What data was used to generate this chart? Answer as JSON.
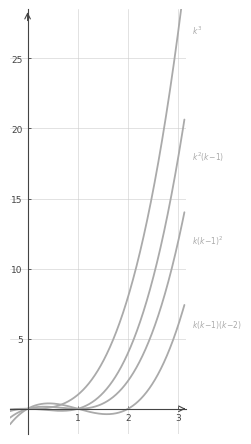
{
  "curves": [
    {
      "label": "k³",
      "color": "#aaaaaa",
      "linewidth": 1.3
    },
    {
      "label": "k²(k-1)",
      "color": "#aaaaaa",
      "linewidth": 1.3
    },
    {
      "label": "k(k-1)²",
      "color": "#aaaaaa",
      "linewidth": 1.3
    },
    {
      "label": "k(k-1)(k-2)",
      "color": "#aaaaaa",
      "linewidth": 1.3
    }
  ],
  "xlim": [
    -0.35,
    3.15
  ],
  "ylim": [
    -1.8,
    28.5
  ],
  "xticks": [
    1,
    2,
    3
  ],
  "yticks": [
    5,
    10,
    15,
    20,
    25
  ],
  "background_color": "#ffffff",
  "sidebar_color": "#111111",
  "grid_color": "#cccccc",
  "axis_color": "#444444",
  "label_color": "#aaaaaa",
  "label_fontsize": 5.5,
  "tick_fontsize": 6.5
}
